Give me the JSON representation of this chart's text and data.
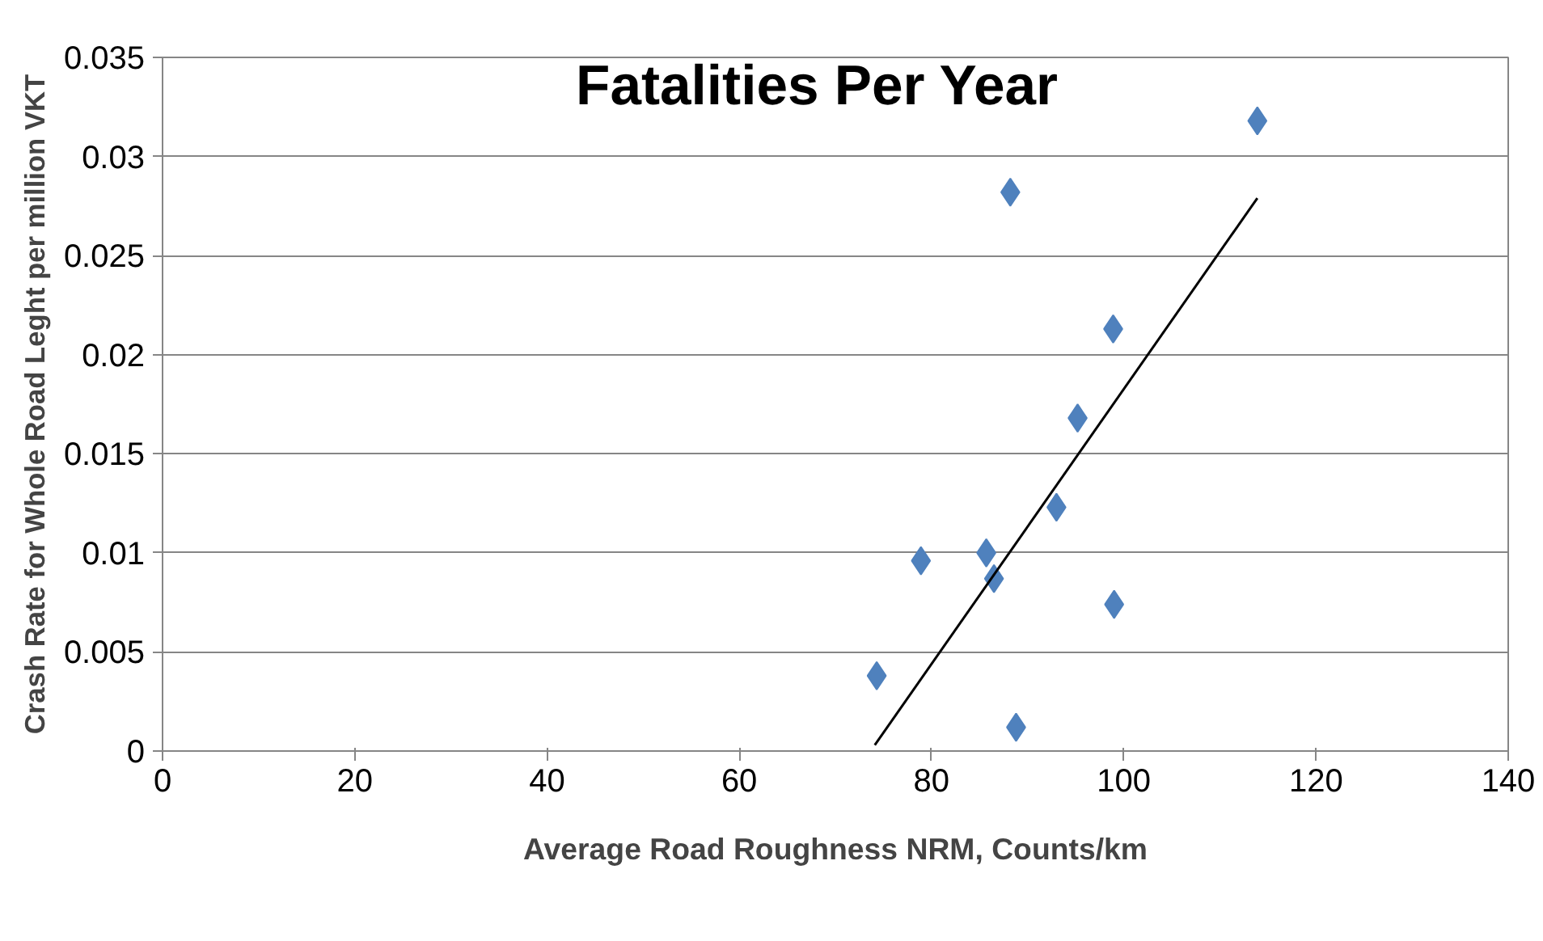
{
  "chart_data": {
    "type": "scatter",
    "title": "Fatalities Per Year",
    "xlabel": "Average Road Roughness NRM, Counts/km",
    "ylabel": "Crash Rate for Whole Road Leght per million VKT",
    "xlim": [
      0,
      140
    ],
    "xticks": [
      0,
      20,
      40,
      60,
      80,
      100,
      120,
      140
    ],
    "ylim": [
      0,
      0.035
    ],
    "yticks": [
      0,
      0.005,
      0.01,
      0.015,
      0.02,
      0.025,
      0.03,
      0.035
    ],
    "grid": "y",
    "series": [
      {
        "marker": "diamond",
        "color": "#4f81bd",
        "x": [
          74.3,
          88.8,
          78.9,
          85.7,
          86.5,
          93.0,
          99.0,
          95.2,
          98.9,
          88.2,
          113.9
        ],
        "values": [
          0.0038,
          0.0012,
          0.0096,
          0.01,
          0.0087,
          0.0123,
          0.0074,
          0.0168,
          0.0213,
          0.0282,
          0.0318
        ]
      },
      {
        "type": "line",
        "color": "#000000",
        "line_style": "solid",
        "x": [
          74.1,
          113.9
        ],
        "values": [
          0.0003,
          0.0279
        ]
      }
    ]
  }
}
